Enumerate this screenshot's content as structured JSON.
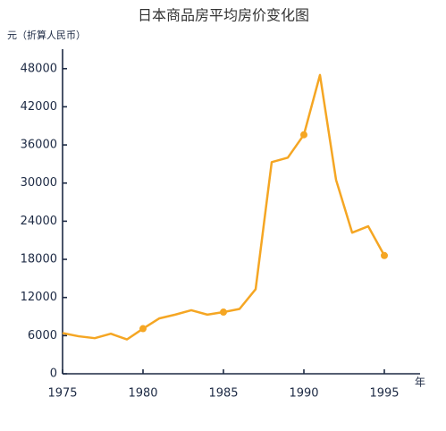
{
  "chart_data": {
    "type": "line",
    "title": "日本商品房平均房价变化图",
    "y_label": "元（折算人民币）",
    "x_label": "年",
    "x": [
      1975,
      1976,
      1977,
      1978,
      1979,
      1980,
      1981,
      1982,
      1983,
      1984,
      1985,
      1986,
      1987,
      1988,
      1989,
      1990,
      1991,
      1992,
      1993,
      1994,
      1995
    ],
    "series": [
      {
        "color": "#f5a623",
        "values": [
          6400,
          5900,
          5600,
          6300,
          5400,
          7100,
          8700,
          9300,
          10000,
          9300,
          9700,
          10200,
          13300,
          33300,
          34000,
          37600,
          47000,
          30500,
          22200,
          23200,
          18600
        ]
      }
    ],
    "xlim": [
      1975,
      1997.5
    ],
    "xticks": [
      1975,
      1980,
      1985,
      1990,
      1995
    ],
    "ylim": [
      0,
      50500
    ],
    "yticks": [
      0,
      6000,
      12000,
      18000,
      24000,
      30000,
      36000,
      42000,
      48000
    ]
  }
}
